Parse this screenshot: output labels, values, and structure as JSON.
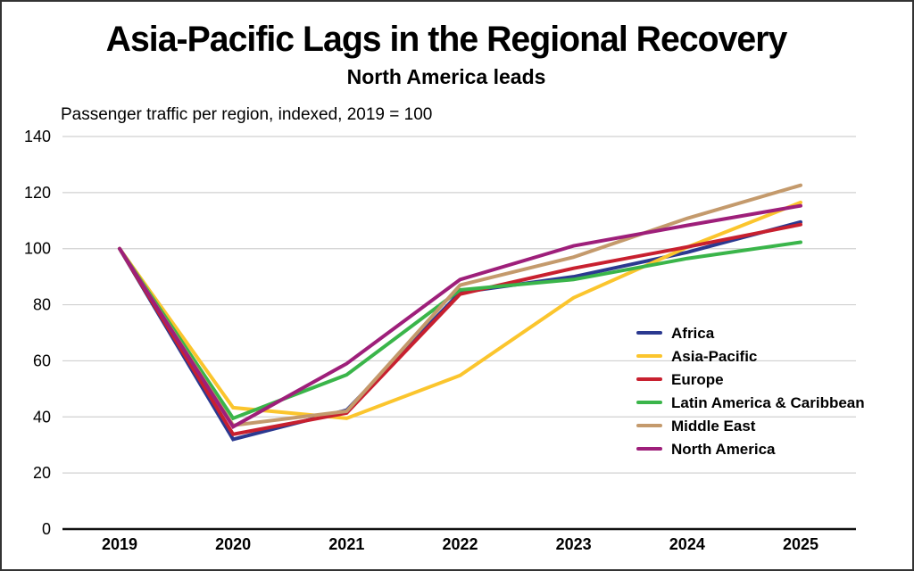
{
  "chart_data": {
    "type": "line",
    "title": "Asia-Pacific Lags in the Regional Recovery",
    "subtitle": "North America leads",
    "ylabel": "Passenger traffic per region, indexed, 2019 = 100",
    "xlabel": "",
    "categories": [
      "2019",
      "2020",
      "2021",
      "2022",
      "2023",
      "2024",
      "2025"
    ],
    "ylim": [
      0,
      140
    ],
    "yticks": [
      0,
      20,
      40,
      60,
      80,
      100,
      120,
      140
    ],
    "grid": true,
    "legend_position": "right",
    "series": [
      {
        "name": "Africa",
        "color": "#2b3990",
        "values": [
          100,
          32,
          42.4,
          84.4,
          90,
          98.7,
          109.5
        ]
      },
      {
        "name": "Asia-Pacific",
        "color": "#fbc52d",
        "values": [
          100,
          43.3,
          39.5,
          54.8,
          82.5,
          100.5,
          116.5
        ]
      },
      {
        "name": "Europe",
        "color": "#c8202f",
        "values": [
          100,
          33.8,
          41.4,
          83.8,
          93,
          100.6,
          108.6
        ]
      },
      {
        "name": "Latin America & Caribbean",
        "color": "#3ab54a",
        "values": [
          100,
          39.5,
          55,
          85.3,
          89,
          96.5,
          102.3
        ]
      },
      {
        "name": "Middle East",
        "color": "#c49a6c",
        "values": [
          100,
          37,
          42,
          87,
          97,
          110.8,
          122.6
        ]
      },
      {
        "name": "North America",
        "color": "#9e1f7a",
        "values": [
          100,
          36.5,
          59,
          89,
          101,
          108.3,
          115.3
        ]
      }
    ]
  }
}
